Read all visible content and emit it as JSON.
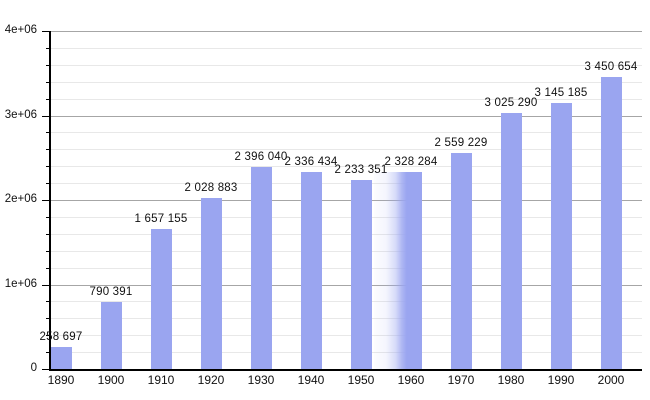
{
  "chart_data": {
    "type": "bar",
    "title": "",
    "xlabel": "",
    "ylabel": "",
    "categories": [
      "1890",
      "1900",
      "1910",
      "1920",
      "1930",
      "1940",
      "1950",
      "1960",
      "1970",
      "1980",
      "1990",
      "2000"
    ],
    "values": [
      258697,
      790391,
      1657155,
      2028883,
      2396040,
      2336434,
      2233351,
      2328284,
      2559229,
      3025290,
      3145185,
      3450654
    ],
    "value_labels": [
      "258 697",
      "790 391",
      "1 657 155",
      "2 028 883",
      "2 396 040",
      "2 336 434",
      "2 233 351",
      "2 328 284",
      "2 559 229",
      "3 025 290",
      "3 145 185",
      "3 450 654"
    ],
    "ylim": [
      0,
      4000000
    ],
    "y_tick_labels": [
      "0",
      "1e+06",
      "2e+06",
      "3e+06",
      "4e+06"
    ],
    "y_major_step": 1000000,
    "y_minor_step": 200000,
    "grid": "on",
    "legend": "none",
    "bar_color": "#9aa5f0",
    "major_grid_color": "#a6a6a6",
    "minor_grid_color": "#e8e8e8",
    "axis_color": "#000000",
    "faded_bar_category": "1960"
  }
}
